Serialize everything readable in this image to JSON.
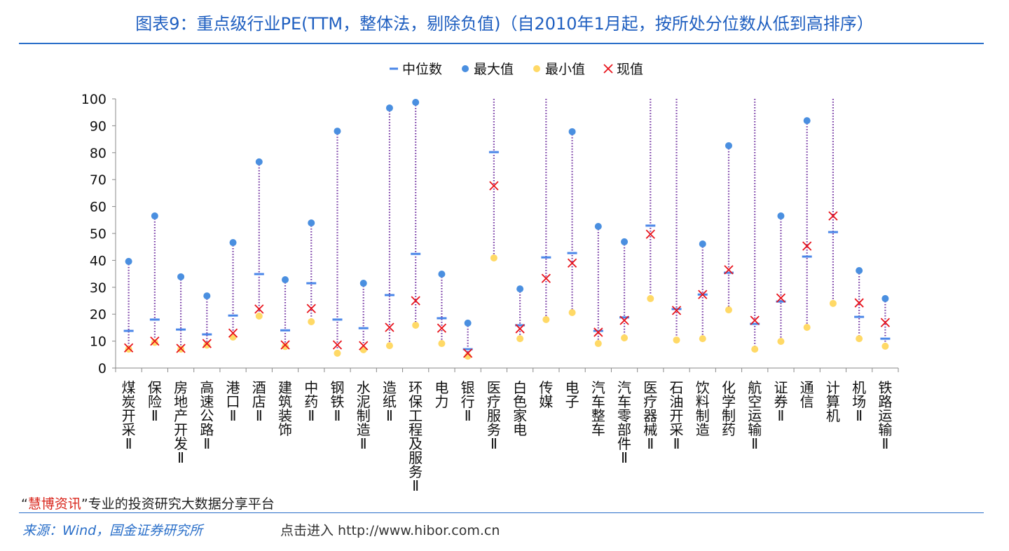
{
  "title": "图表9：重点级行业PE(TTM，整体法，剔除负值)（自2010年1月起，按所处分位数从低到高排序）",
  "footer": {
    "quote_open": "“",
    "brand": "慧博资讯",
    "quote_close": "”",
    "tagline": "专业的投资研究大数据分享平台",
    "source": "来源：Wind，国金证券研究所",
    "watermark": "点击进入 http://www.hibor.com.cn"
  },
  "colors": {
    "title": "#1f5fc0",
    "median": "#4a86e8",
    "max": "#4a8fe0",
    "min": "#ffd966",
    "current": "#e8141c",
    "range_line": "#7030a0"
  },
  "chart_data": {
    "type": "scatter",
    "title": "图表9：重点级行业PE(TTM，整体法，剔除负值)（自2010年1月起，按所处分位数从低到高排序）",
    "ylim": [
      0,
      100
    ],
    "yticks": [
      0,
      10,
      20,
      30,
      40,
      50,
      60,
      70,
      80,
      90,
      100
    ],
    "grid": false,
    "legend_position": "top",
    "categories": [
      "煤炭开采Ⅱ",
      "保险Ⅱ",
      "房地产开发Ⅱ",
      "高速公路Ⅱ",
      "港口Ⅱ",
      "酒店Ⅱ",
      "建筑装饰",
      "中药Ⅱ",
      "钢铁Ⅱ",
      "水泥制造Ⅱ",
      "造纸Ⅱ",
      "环保工程及服务Ⅱ",
      "电力",
      "银行Ⅱ",
      "医疗服务Ⅱ",
      "白色家电",
      "传媒",
      "电子",
      "汽车整车",
      "汽车零部件Ⅱ",
      "医疗器械Ⅱ",
      "石油开采Ⅱ",
      "饮料制造",
      "化学制药",
      "航空运输Ⅱ",
      "证券Ⅱ",
      "通信",
      "计算机",
      "机场Ⅱ",
      "铁路运输Ⅱ"
    ],
    "series": [
      {
        "name": "中位数",
        "marker": "dash",
        "values": [
          13.8,
          18,
          14.3,
          12.5,
          19.5,
          34.9,
          14,
          31.5,
          18,
          14.8,
          27.1,
          42.4,
          18.5,
          7,
          80.2,
          15.9,
          41.1,
          42.7,
          13.8,
          18.8,
          52.9,
          21.9,
          27.3,
          35.4,
          16.4,
          24.7,
          41.4,
          50.5,
          19,
          10.9
        ]
      },
      {
        "name": "最大值",
        "marker": "circle",
        "values": [
          39.6,
          56.5,
          33.9,
          26.8,
          46.6,
          76.6,
          32.8,
          53.9,
          88,
          31.5,
          96.6,
          98.7,
          34.9,
          16.7,
          null,
          29.4,
          null,
          87.8,
          52.6,
          46.9,
          null,
          null,
          46.1,
          82.6,
          null,
          56.5,
          91.9,
          null,
          36.2,
          25.8
        ]
      },
      {
        "name": "最小值",
        "marker": "circle",
        "values": [
          7,
          9.5,
          7,
          8.5,
          11.5,
          19.3,
          8,
          17.2,
          5.5,
          6.8,
          8.3,
          15.9,
          9.1,
          4.4,
          40.9,
          10.9,
          18,
          20.6,
          9.1,
          11.2,
          25.8,
          10.4,
          10.9,
          21.6,
          7,
          9.9,
          15.1,
          24,
          10.9,
          8.1
        ]
      },
      {
        "name": "现值",
        "marker": "x",
        "values": [
          7.5,
          10,
          7.3,
          9.1,
          13,
          21.9,
          8.6,
          22.1,
          8.6,
          8.3,
          15.1,
          25,
          14.8,
          5.5,
          67.7,
          14.6,
          33.3,
          39,
          13.3,
          17.7,
          49.7,
          21.4,
          27.3,
          36.5,
          17.7,
          26,
          45.3,
          56.5,
          24.2,
          16.9
        ]
      }
    ]
  }
}
